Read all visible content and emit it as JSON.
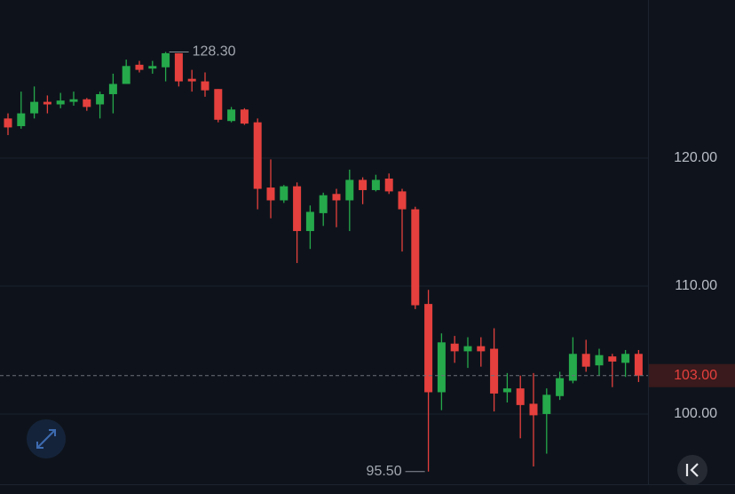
{
  "chart_data": {
    "type": "candlestick",
    "up_color": "#25a94b",
    "down_color": "#e5403d",
    "ylim": [
      94.51,
      132.36
    ],
    "yticks": [
      {
        "value": 100,
        "label": "100.00"
      },
      {
        "value": 110,
        "label": "110.00"
      },
      {
        "value": 120,
        "label": "120.00"
      }
    ],
    "grid": true,
    "open": [
      123.1,
      122.5,
      123.5,
      124.4,
      124.2,
      124.4,
      124.6,
      124.2,
      125.0,
      125.8,
      127.3,
      127.0,
      127.1,
      128.2,
      126.2,
      126.0,
      125.4,
      122.9,
      123.8,
      122.8,
      117.7,
      116.7,
      117.8,
      114.3,
      115.7,
      117.2,
      116.7,
      118.3,
      117.5,
      118.4,
      117.4,
      116.0,
      108.6,
      101.7,
      105.5,
      104.9,
      105.3,
      105.1,
      101.7,
      102.0,
      100.8,
      100.0,
      101.4,
      102.6,
      104.7,
      103.8,
      104.5,
      104.0,
      104.7
    ],
    "high": [
      123.5,
      125.2,
      125.6,
      124.9,
      125.1,
      125.2,
      124.7,
      125.2,
      126.6,
      127.7,
      127.6,
      127.6,
      128.3,
      128.2,
      126.9,
      126.7,
      125.4,
      124.0,
      123.9,
      123.1,
      119.9,
      117.9,
      118.1,
      116.3,
      117.3,
      117.6,
      119.1,
      118.5,
      118.7,
      118.8,
      117.6,
      116.2,
      109.7,
      106.3,
      106.1,
      106.0,
      106.0,
      106.7,
      103.2,
      103.0,
      103.2,
      102.0,
      103.3,
      106.0,
      105.8,
      105.1,
      104.7,
      105.0,
      105.0
    ],
    "low": [
      121.8,
      122.3,
      123.1,
      123.5,
      123.9,
      124.1,
      123.7,
      123.1,
      123.5,
      125.8,
      126.7,
      126.6,
      126.0,
      125.6,
      125.2,
      124.8,
      122.8,
      122.8,
      122.6,
      116.0,
      115.3,
      116.5,
      111.8,
      112.9,
      114.7,
      114.6,
      114.3,
      116.4,
      117.4,
      117.2,
      112.7,
      108.2,
      95.5,
      100.3,
      104.0,
      103.6,
      103.7,
      100.2,
      100.9,
      98.1,
      95.9,
      96.9,
      101.1,
      102.4,
      103.3,
      103.0,
      102.1,
      102.9,
      102.5
    ],
    "close": [
      122.4,
      123.5,
      124.4,
      124.2,
      124.5,
      124.6,
      124.0,
      125.0,
      125.8,
      127.2,
      126.9,
      127.2,
      128.2,
      126.0,
      126.0,
      125.3,
      123.0,
      123.8,
      122.7,
      117.6,
      116.7,
      117.8,
      114.3,
      115.8,
      117.1,
      116.7,
      118.3,
      117.5,
      118.3,
      117.4,
      116.0,
      108.5,
      101.7,
      105.6,
      104.9,
      105.3,
      104.9,
      101.6,
      102.0,
      100.7,
      99.9,
      101.5,
      102.8,
      104.7,
      103.7,
      104.6,
      104.1,
      104.7,
      103.0
    ],
    "annotations": [
      {
        "name": "high",
        "value": 128.3,
        "label": "128.30"
      },
      {
        "name": "low",
        "value": 95.5,
        "label": "95.50"
      }
    ],
    "last_price": {
      "value": 103,
      "label": "103.00"
    }
  }
}
